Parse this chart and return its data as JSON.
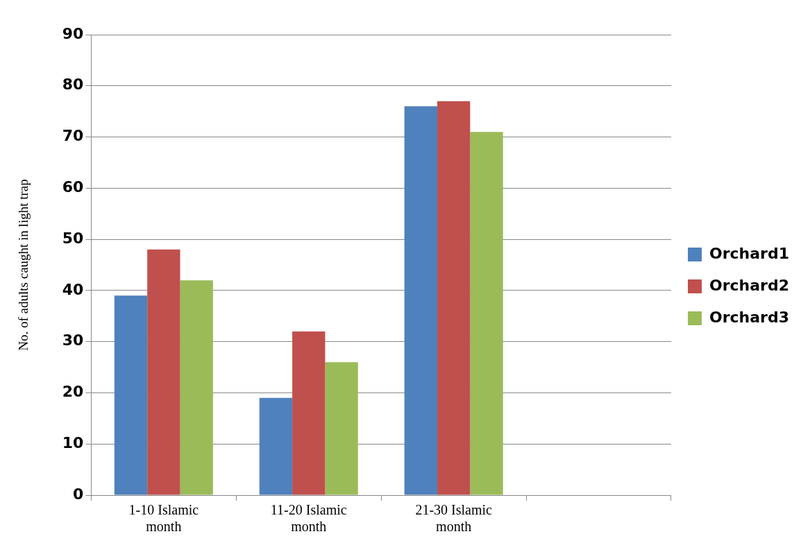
{
  "chart_data": {
    "type": "bar",
    "ylabel": "No. of adults caught in light trap",
    "categories": [
      "1-10 Islamic month",
      "11-20 Islamic month",
      "21-30 Islamic month",
      null
    ],
    "series": [
      {
        "name": "Orchard1",
        "color": "#4f81bd",
        "values": [
          39,
          19,
          76,
          null
        ]
      },
      {
        "name": "Orchard2",
        "color": "#c0504d",
        "values": [
          48,
          32,
          77,
          null
        ]
      },
      {
        "name": "Orchard3",
        "color": "#9bbb59",
        "values": [
          42,
          26,
          71,
          null
        ]
      }
    ],
    "ylim": [
      0,
      90
    ],
    "yticks": [
      0,
      10,
      20,
      30,
      40,
      50,
      60,
      70,
      80,
      90
    ],
    "grid": "y",
    "legend": "right"
  }
}
